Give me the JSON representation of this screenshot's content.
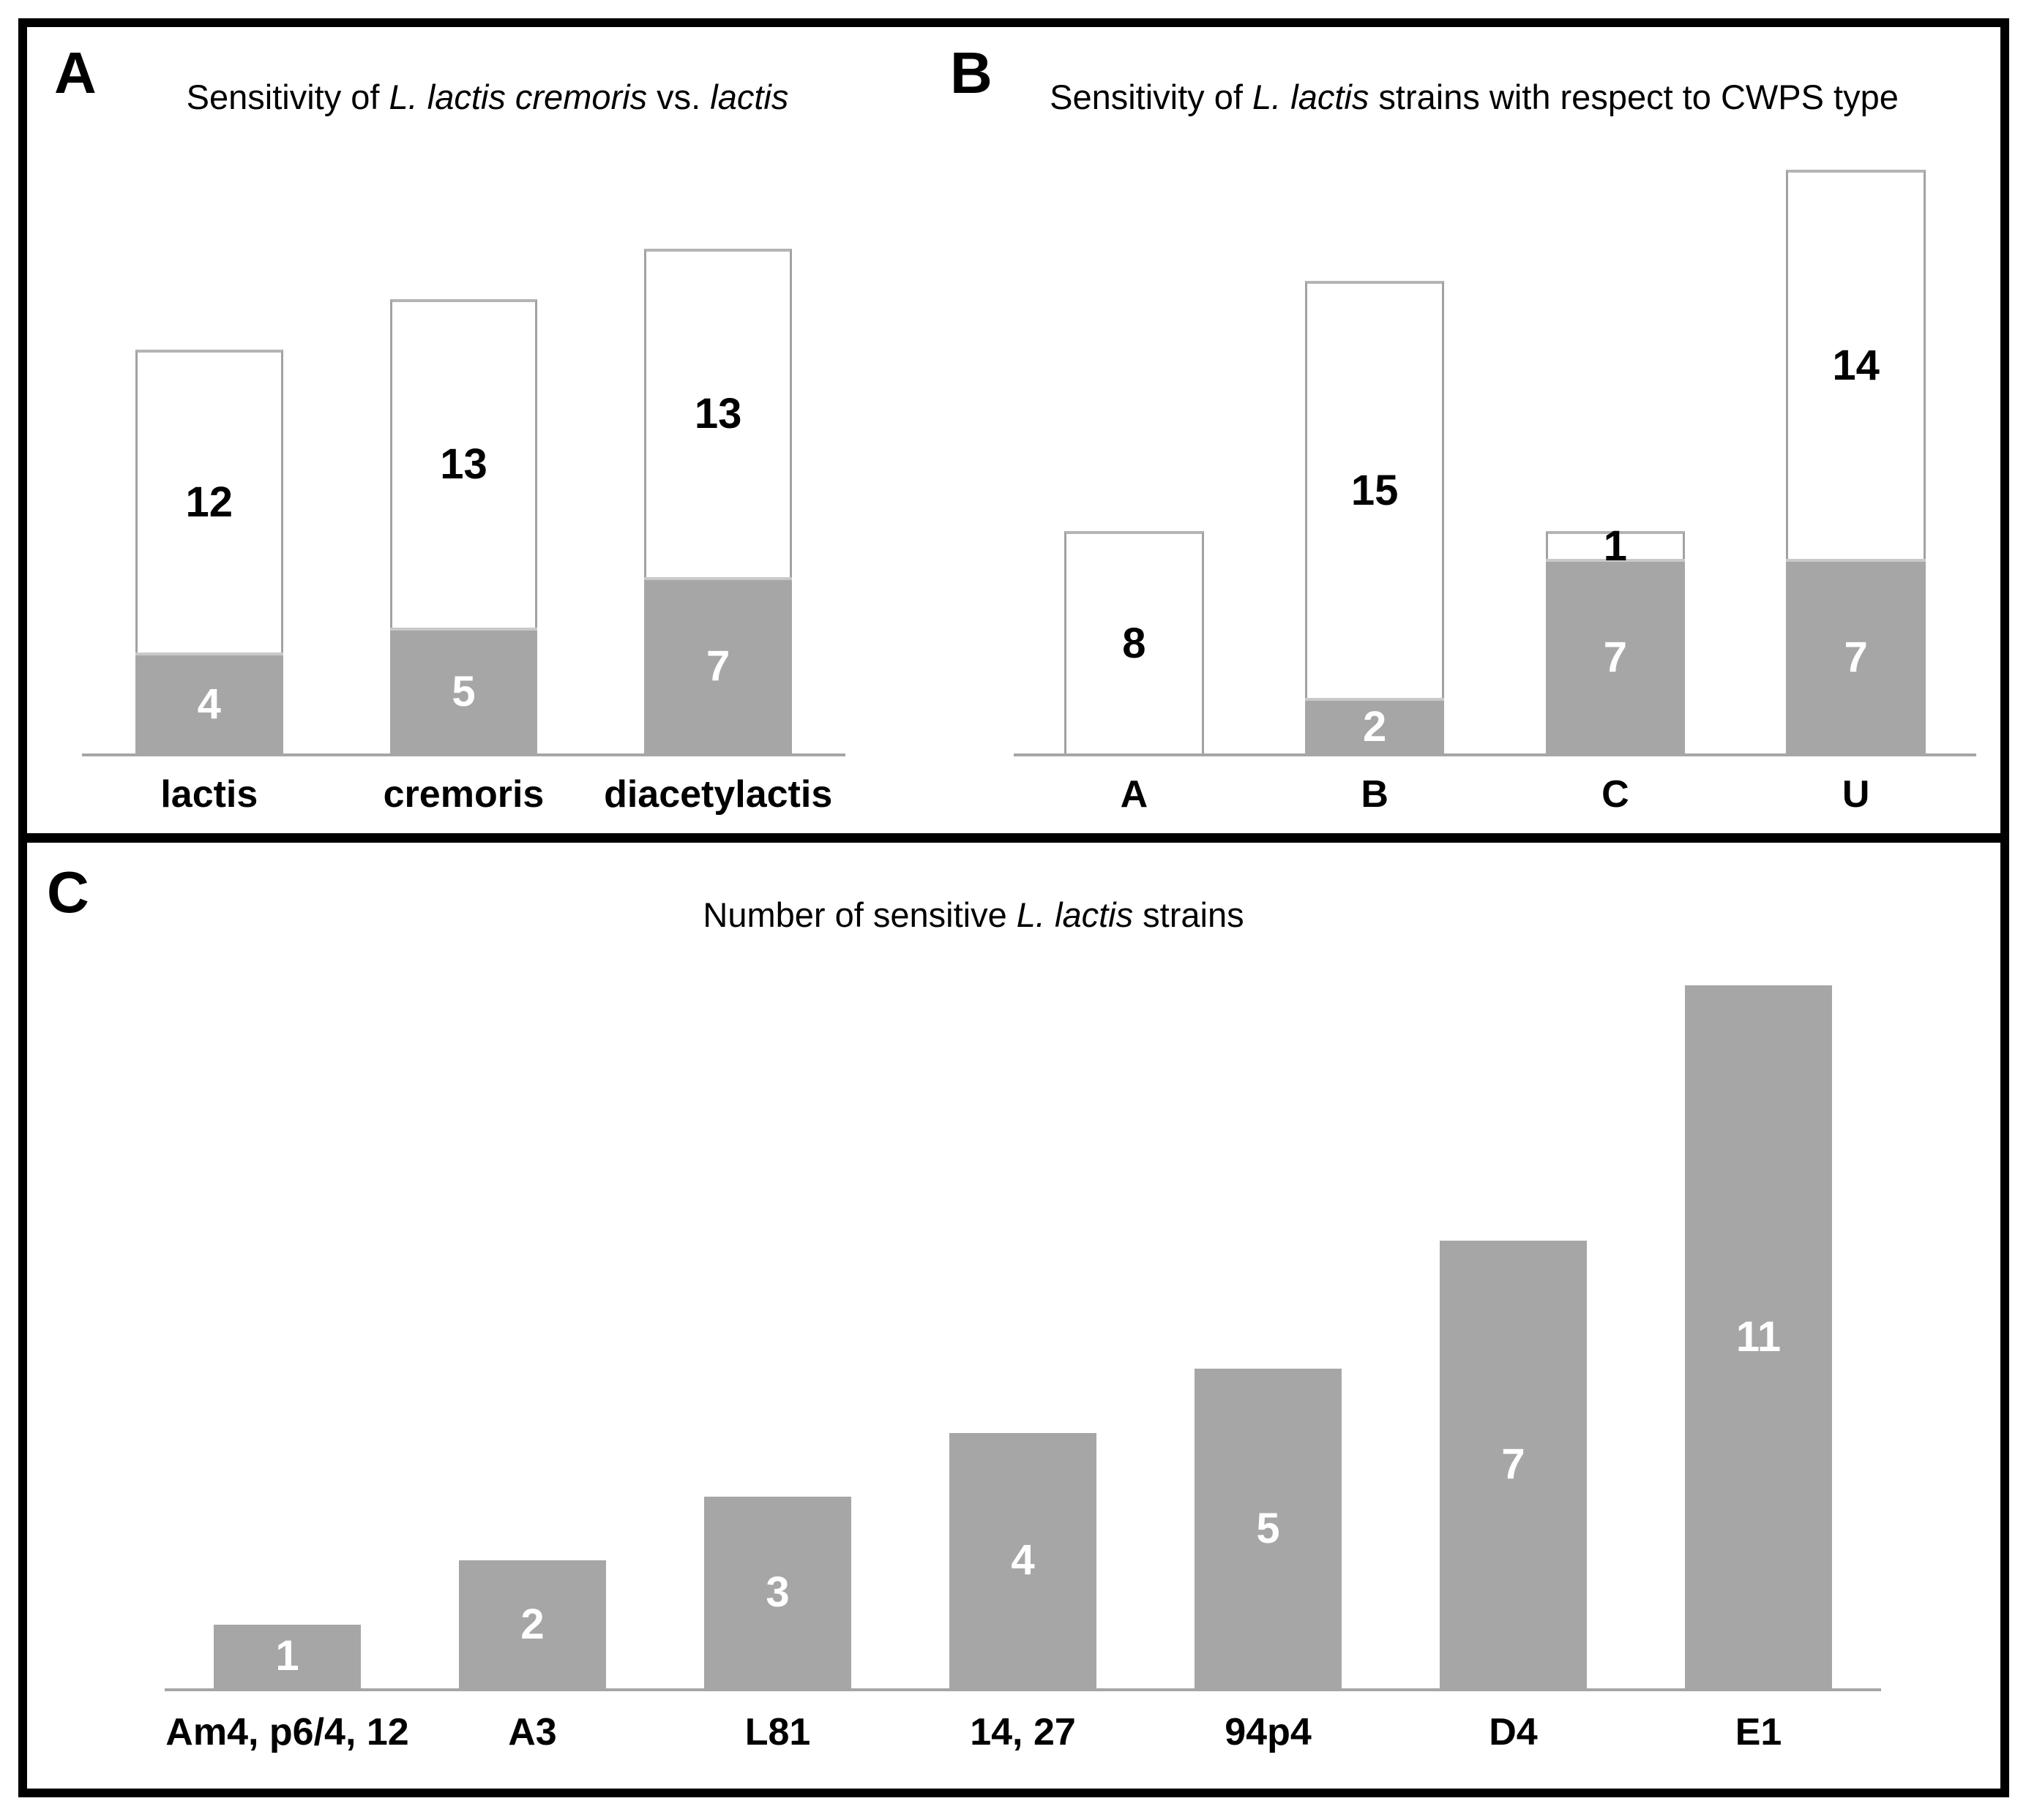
{
  "panels": [
    {
      "id": "A",
      "panel_label": "A",
      "title_segments": [
        {
          "text": "Sensitivity of ",
          "italic": false
        },
        {
          "text": "L. lactis cremoris",
          "italic": true
        },
        {
          "text": " vs. ",
          "italic": false
        },
        {
          "text": "lactis",
          "italic": true
        }
      ]
    },
    {
      "id": "B",
      "panel_label": "B",
      "title_segments": [
        {
          "text": "Sensitivity of ",
          "italic": false
        },
        {
          "text": "L. lactis",
          "italic": true
        },
        {
          "text": " strains with respect to CWPS type",
          "italic": false
        }
      ]
    },
    {
      "id": "C",
      "panel_label": "C",
      "title_segments": [
        {
          "text": "Number of sensitive ",
          "italic": false
        },
        {
          "text": "L. lactis",
          "italic": true
        },
        {
          "text": " strains",
          "italic": false
        }
      ]
    }
  ],
  "chart_data": [
    {
      "panel": "A",
      "type": "bar",
      "stacked": true,
      "title": "Sensitivity of L. lactis cremoris vs. lactis",
      "categories": [
        "lactis",
        "cremoris",
        "diacetylactis"
      ],
      "series": [
        {
          "name": "gray bottom segment",
          "color": "#a6a6a6",
          "label_color": "#ffffff",
          "outline": false,
          "top_edge": "#c9c9c9",
          "values": [
            4,
            5,
            7
          ]
        },
        {
          "name": "white top segment",
          "color": "#ffffff",
          "label_color": "#000000",
          "outline": true,
          "top_edge": null,
          "values": [
            12,
            13,
            13
          ]
        }
      ],
      "bar_totals": [
        16,
        18,
        20
      ],
      "value_labels": "shown centered in every segment",
      "y_axis": "hidden",
      "ylim": [
        0,
        20
      ],
      "grid": false,
      "legend": "none"
    },
    {
      "panel": "B",
      "type": "bar",
      "stacked": true,
      "title": "Sensitivity of L. lactis strains with respect to CWPS type",
      "categories": [
        "A",
        "B",
        "C",
        "U"
      ],
      "series": [
        {
          "name": "gray bottom segment",
          "color": "#a6a6a6",
          "label_color": "#ffffff",
          "outline": false,
          "top_edge": "#c9c9c9",
          "values": [
            0,
            2,
            7,
            7
          ]
        },
        {
          "name": "white top segment",
          "color": "#ffffff",
          "label_color": "#000000",
          "outline": true,
          "top_edge": null,
          "values": [
            8,
            15,
            1,
            14
          ]
        }
      ],
      "bar_totals": [
        8,
        17,
        8,
        21
      ],
      "value_labels": "shown centered in every segment",
      "y_axis": "hidden",
      "ylim": [
        0,
        21
      ],
      "grid": false,
      "legend": "none"
    },
    {
      "panel": "C",
      "type": "bar",
      "stacked": false,
      "title": "Number of sensitive L. lactis strains",
      "categories": [
        "Am4, p6/4, 12",
        "A3",
        "L81",
        "14, 27",
        "94p4",
        "D4",
        "E1"
      ],
      "series": [
        {
          "name": "gray bar",
          "color": "#a6a6a6",
          "label_color": "#ffffff",
          "outline": false,
          "top_edge": null,
          "values": [
            1,
            2,
            3,
            4,
            5,
            7,
            11
          ]
        }
      ],
      "bar_totals": [
        1,
        2,
        3,
        4,
        5,
        7,
        11
      ],
      "value_labels": "white, centered inside bars",
      "y_axis": "hidden",
      "ylim": [
        0,
        11
      ],
      "grid": false,
      "legend": "none"
    }
  ],
  "colors": {
    "background": "#ffffff",
    "frame": "#000000",
    "bar_gray": "#a6a6a6",
    "bar_white": "#ffffff",
    "bar_outline": "#a2a2a2",
    "bar_top_edge": "#b4b4b4",
    "gray_boundary_edge": "#c9c9c9",
    "axis": "#a6a6a6",
    "label_on_gray": "#ffffff",
    "label_on_white": "#000000"
  }
}
